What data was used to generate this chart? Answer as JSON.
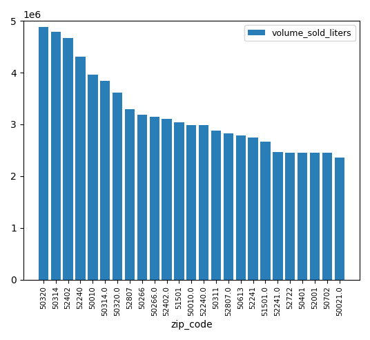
{
  "categories": [
    "50320",
    "50314",
    "52402",
    "52240",
    "50010",
    "50314.0",
    "50320.0",
    "52807",
    "50266",
    "50266.0",
    "52402.0",
    "51501",
    "50010.0",
    "52240.0",
    "50311",
    "52807.0",
    "50613",
    "52241",
    "51501.0",
    "52241.0",
    "52722",
    "50401",
    "52001",
    "50702",
    "50021.0"
  ],
  "values": [
    4880000,
    4790000,
    4670000,
    4310000,
    3960000,
    3840000,
    3620000,
    3290000,
    3180000,
    3150000,
    3110000,
    3040000,
    2990000,
    2990000,
    2880000,
    2820000,
    2780000,
    2750000,
    2670000,
    2470000,
    2450000,
    2450000,
    2450000,
    2450000,
    2360000
  ],
  "bar_color": "#2a7eb8",
  "xlabel": "zip_code",
  "legend_label": "volume_sold_liters",
  "ylim": [
    0,
    5000000
  ]
}
